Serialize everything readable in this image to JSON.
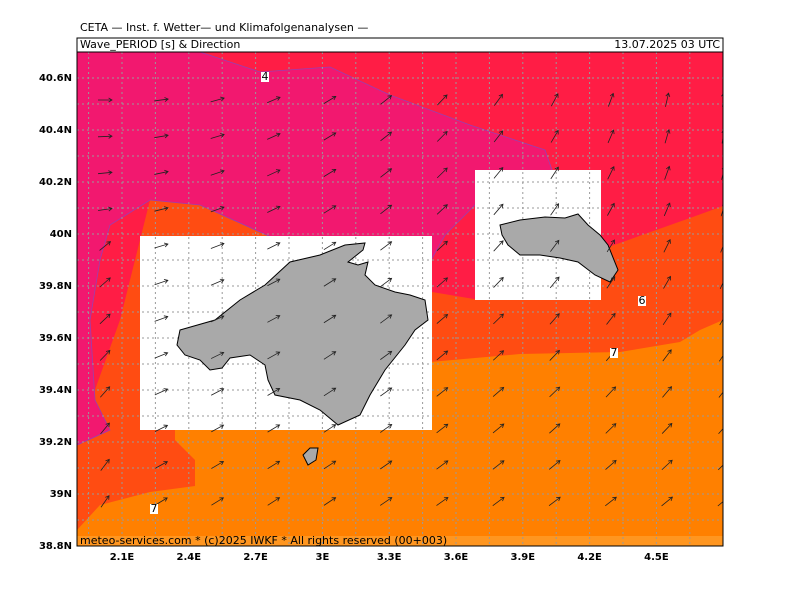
{
  "header": {
    "institute": "CETA — Inst. f. Wetter— und Klimafolgenanalysen —",
    "parameter": "Wave_PERIOD [s] & Direction",
    "valid_time": "13.07.2025 03 UTC"
  },
  "map": {
    "lon_labels": [
      "2.1E",
      "2.4E",
      "2.7E",
      "3E",
      "3.3E",
      "3.6E",
      "3.9E",
      "4.2E",
      "4.5E"
    ],
    "lat_labels": [
      "40.6N",
      "40.4N",
      "40.2N",
      "40N",
      "39.8N",
      "39.6N",
      "39.4N",
      "39.2N",
      "39N",
      "38.8N"
    ],
    "contour_labels": [
      "4",
      "6",
      "7",
      "7"
    ],
    "footer": "meteo-services.com * (c)2025 IWKF * All rights reserved (00+003)"
  }
}
